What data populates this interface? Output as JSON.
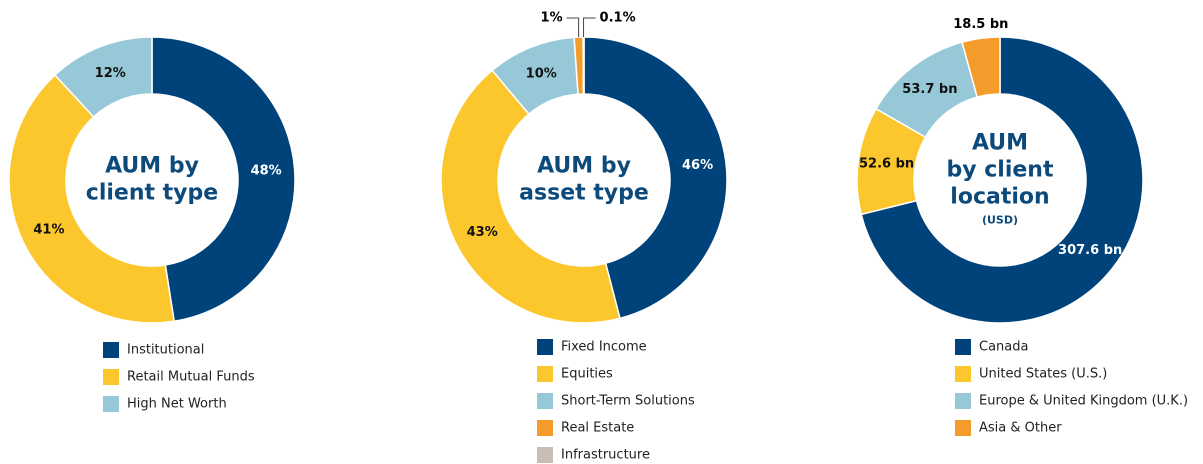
{
  "chart_data": [
    {
      "type": "pie",
      "donut": true,
      "title": [
        "AUM by",
        "client type"
      ],
      "categories": [
        "Institutional",
        "Retail Mutual Funds",
        "High Net Worth"
      ],
      "values": [
        48,
        41,
        12
      ],
      "value_labels": [
        "48%",
        "41%",
        "12%"
      ],
      "colors": [
        "#00427a",
        "#fcc62d",
        "#97c8d8"
      ]
    },
    {
      "type": "pie",
      "donut": true,
      "title": [
        "AUM by",
        "asset type"
      ],
      "categories": [
        "Fixed Income",
        "Equities",
        "Short-Term Solutions",
        "Real Estate",
        "Infrastructure"
      ],
      "values": [
        46,
        43,
        10,
        1,
        0.1
      ],
      "value_labels": [
        "46%",
        "43%",
        "10%",
        "1%",
        "0.1%"
      ],
      "colors": [
        "#00427a",
        "#fcc62d",
        "#97c8d8",
        "#f39c2b",
        "#c8beb4"
      ]
    },
    {
      "type": "pie",
      "donut": true,
      "title": [
        "AUM",
        "by client",
        "location"
      ],
      "subtitle": "(USD)",
      "categories": [
        "Canada",
        "United States (U.S.)",
        "Europe & United Kingdom (U.K.)",
        "Asia & Other"
      ],
      "values": [
        307.6,
        52.6,
        53.7,
        18.5
      ],
      "value_labels": [
        "307.6 bn",
        "52.6 bn",
        "53.7 bn",
        "18.5 bn"
      ],
      "colors": [
        "#00427a",
        "#fcc62d",
        "#97c8d8",
        "#f39c2b"
      ]
    }
  ]
}
